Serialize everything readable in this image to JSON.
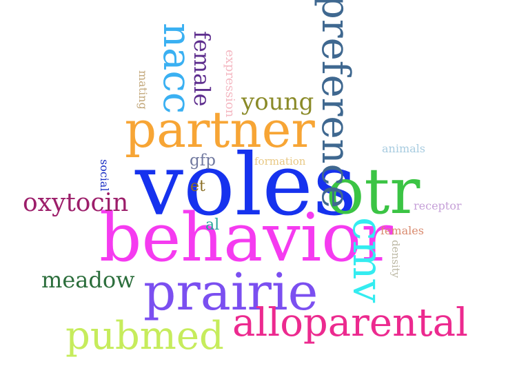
{
  "words": {
    "voles": {
      "text": "voles",
      "color": "#1632ee"
    },
    "behavior": {
      "text": "behavior",
      "color": "#f53bf0"
    },
    "otr": {
      "text": "otr",
      "color": "#3bc444"
    },
    "partner": {
      "text": "partner",
      "color": "#f7a535"
    },
    "prairie": {
      "text": "prairie",
      "color": "#7b4ff0"
    },
    "preference": {
      "text": "preference",
      "color": "#3f6890"
    },
    "nacc": {
      "text": "nacc",
      "color": "#3ab0f2"
    },
    "cmv": {
      "text": "cmv",
      "color": "#34ecf0"
    },
    "alloparental": {
      "text": "alloparental",
      "color": "#ec2a8f"
    },
    "pubmed": {
      "text": "pubmed",
      "color": "#c6ec5c"
    },
    "oxytocin": {
      "text": "oxytocin",
      "color": "#9c1e6a"
    },
    "meadow": {
      "text": "meadow",
      "color": "#2c6e3c"
    },
    "young": {
      "text": "young",
      "color": "#8a8a28"
    },
    "female": {
      "text": "female",
      "color": "#5e2e8e"
    },
    "gfp": {
      "text": "gfp",
      "color": "#727aa0"
    },
    "et": {
      "text": "et",
      "color": "#8a6e24"
    },
    "al": {
      "text": "al",
      "color": "#26a69a"
    },
    "formation": {
      "text": "formation",
      "color": "#e8c883"
    },
    "expression": {
      "text": "expression",
      "color": "#f4b8c2"
    },
    "mating": {
      "text": "mating",
      "color": "#c2a77a"
    },
    "social": {
      "text": "social",
      "color": "#1a2ec4"
    },
    "animals": {
      "text": "animals",
      "color": "#a8cce0"
    },
    "receptor": {
      "text": "receptor",
      "color": "#c6a0d8"
    },
    "females": {
      "text": "females",
      "color": "#d98a6e"
    },
    "density": {
      "text": "density",
      "color": "#bcb8a4"
    }
  }
}
